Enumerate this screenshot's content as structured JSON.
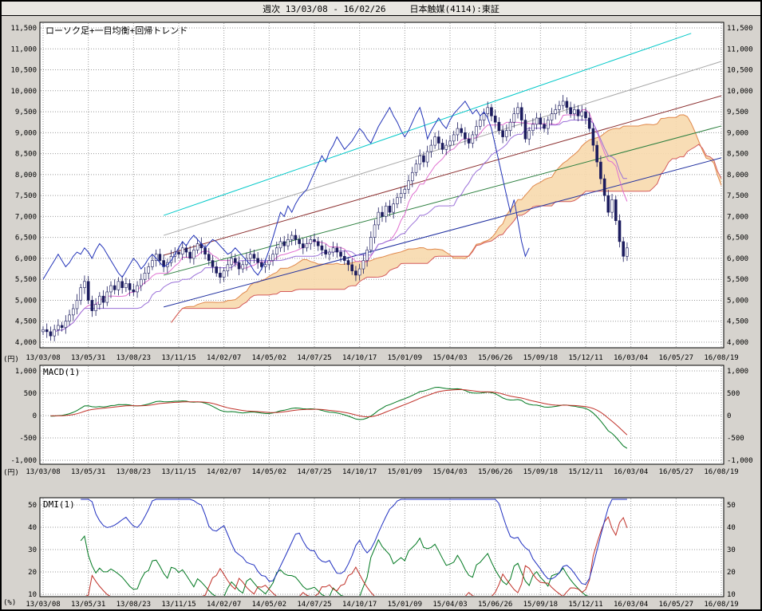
{
  "header": {
    "period_label": "週次 13/03/08 - 16/02/26",
    "symbol_label": "日本触媒(4114):東証"
  },
  "panels": {
    "main": {
      "label": "ローソク足+一目均衡+回帰トレンド",
      "unit_label": "(円)",
      "y_tick_labels": [
        "11,500",
        "11,000",
        "10,500",
        "10,000",
        "9,500",
        "9,000",
        "8,500",
        "8,000",
        "7,500",
        "7,000",
        "6,500",
        "6,000",
        "5,500",
        "5,000",
        "4,500",
        "4,000"
      ],
      "y_tick_values": [
        11500,
        11000,
        10500,
        10000,
        9500,
        9000,
        8500,
        8000,
        7500,
        7000,
        6500,
        6000,
        5500,
        5000,
        4500,
        4000
      ]
    },
    "macd": {
      "label": "MACD(1)",
      "unit_label": "(円)",
      "y_tick_labels": [
        "1,000",
        "500",
        "0",
        "-500",
        "-1,000"
      ],
      "y_tick_values": [
        1000,
        500,
        0,
        -500,
        -1000
      ]
    },
    "dmi": {
      "label": "DMI(1)",
      "unit_label": "(%)",
      "y_tick_labels": [
        "50",
        "40",
        "30",
        "20",
        "10"
      ],
      "y_tick_values": [
        50,
        40,
        30,
        20,
        10
      ]
    }
  },
  "chart_data": {
    "type": "candlestick",
    "title": "日本触媒(4114):東証 週次 13/03/08 - 16/02/26",
    "x_tick_labels": [
      "13/03/08",
      "13/05/31",
      "13/08/23",
      "13/11/15",
      "14/02/07",
      "14/05/02",
      "14/07/25",
      "14/10/17",
      "15/01/09",
      "15/04/03",
      "15/06/26",
      "15/09/18",
      "15/12/11",
      "16/03/04",
      "16/05/27",
      "16/08/19"
    ],
    "weeks_per_tick": 12,
    "total_weeks": 181,
    "price": {
      "ylim": [
        4000,
        11500
      ],
      "weekly_closes": [
        4300,
        4250,
        4150,
        4300,
        4400,
        4350,
        4500,
        4650,
        4800,
        5000,
        5300,
        5450,
        5000,
        4750,
        4900,
        5100,
        4950,
        5200,
        5350,
        5250,
        5450,
        5300,
        5400,
        5250,
        5200,
        5350,
        5500,
        5650,
        5800,
        5950,
        6100,
        5950,
        5800,
        5900,
        6050,
        6150,
        6100,
        6250,
        6150,
        6000,
        6200,
        6350,
        6250,
        6100,
        5950,
        5800,
        5650,
        5550,
        5700,
        5850,
        6000,
        5900,
        5750,
        5850,
        6000,
        6100,
        6000,
        5900,
        5800,
        5850,
        5950,
        6100,
        6250,
        6400,
        6300,
        6450,
        6550,
        6450,
        6350,
        6250,
        6350,
        6450,
        6400,
        6300,
        6200,
        6100,
        6150,
        6250,
        6150,
        6050,
        5950,
        5850,
        5700,
        5600,
        5750,
        5950,
        6200,
        6500,
        6800,
        7100,
        7000,
        7250,
        7100,
        7300,
        7450,
        7550,
        7650,
        7850,
        8050,
        8250,
        8450,
        8300,
        8550,
        8700,
        8900,
        8750,
        8600,
        8700,
        8800,
        8950,
        9100,
        9000,
        8850,
        8750,
        8950,
        9150,
        9300,
        9450,
        9600,
        9400,
        9250,
        9050,
        8900,
        9050,
        9250,
        9450,
        9600,
        9300,
        8850,
        9050,
        9200,
        9350,
        9200,
        9100,
        9300,
        9450,
        9550,
        9650,
        9750,
        9600,
        9450,
        9550,
        9400,
        9500,
        9350,
        9100,
        8700,
        8300,
        7900,
        7500,
        7100,
        7400,
        6900,
        6400,
        6050,
        6250
      ]
    },
    "overlays": {
      "ichimoku_shift": 26,
      "colors": {
        "cloud": "#f7d9ad",
        "cloud_edge_a": "#e0884c",
        "cloud_edge_b": "#d45c5c",
        "tenkan": "#e070d0",
        "kijun": "#9a70d8",
        "chikou": "#2233b8",
        "candle_up_fill": "#ffffff",
        "candle_down_fill": "#1c1c5e",
        "candle_outline": "#1c1c5e"
      },
      "trend_lines": [
        {
          "name": "regression-band-upper-2",
          "color": "#00c8c8",
          "from_week": 32,
          "from_value": 7025,
          "to_week": 172,
          "to_value": 11370
        },
        {
          "name": "regression-band-upper-1",
          "color": "#a8a8a8",
          "from_week": 32,
          "from_value": 6550,
          "to_week": 180,
          "to_value": 10700
        },
        {
          "name": "regression-center",
          "color": "#8c3030",
          "from_week": 32,
          "from_value": 6075,
          "to_week": 180,
          "to_value": 9880
        },
        {
          "name": "regression-band-lower-1",
          "color": "#2e8040",
          "from_week": 32,
          "from_value": 5600,
          "to_week": 180,
          "to_value": 9160
        },
        {
          "name": "regression-band-lower-2",
          "color": "#2030a0",
          "from_week": 32,
          "from_value": 4840,
          "to_week": 180,
          "to_value": 8400
        }
      ]
    },
    "macd_panel": {
      "ylim": [
        -1000,
        1000
      ],
      "line_color": "#007820",
      "signal_color": "#c03028"
    },
    "dmi_panel": {
      "ylim": [
        10,
        50
      ],
      "plus_di_color": "#007820",
      "minus_di_color": "#c03028",
      "adx_color": "#2030c0"
    }
  },
  "colors": {
    "window_bg": "#d6d3ce",
    "plot_bg": "#ffffff",
    "grid": "#999999",
    "border": "#000000"
  }
}
